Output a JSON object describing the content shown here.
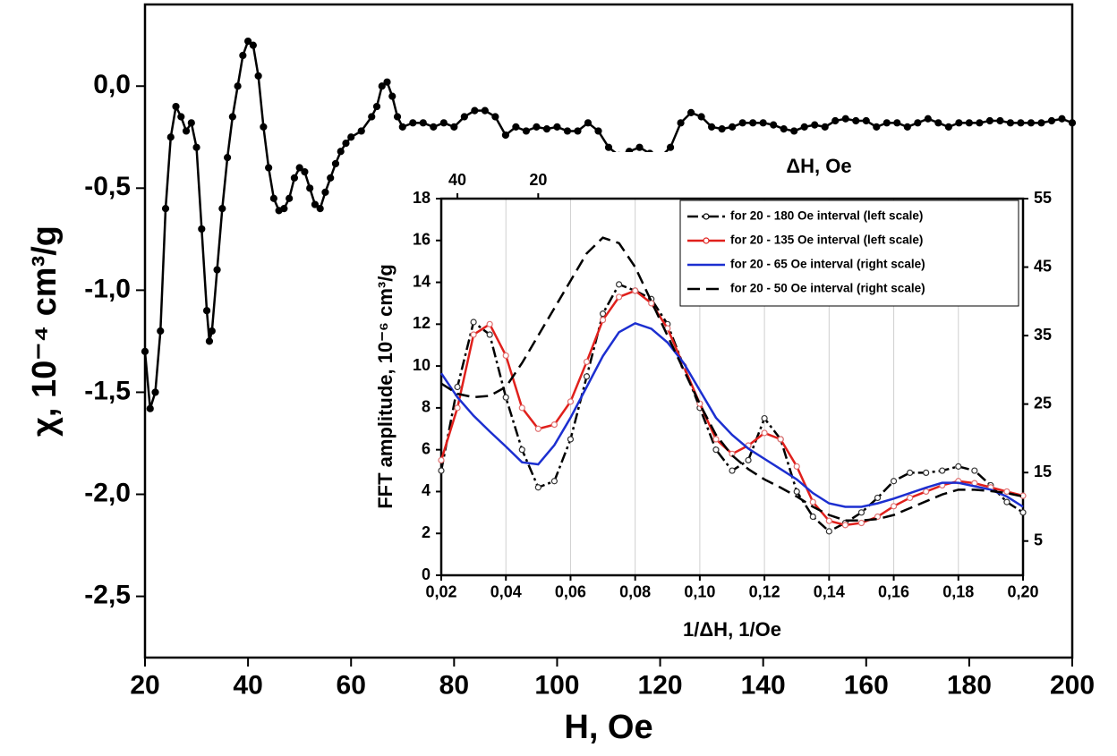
{
  "chart_data": [
    {
      "type": "line",
      "xlabel": "H, Oe",
      "ylabel": "χ, 10⁻⁴ cm³/g",
      "xlim": [
        20,
        200
      ],
      "ylim": [
        -2.8,
        0.4
      ],
      "xticks": [
        20,
        40,
        60,
        80,
        100,
        120,
        140,
        160,
        180,
        200
      ],
      "yticks": [
        {
          "value": 0,
          "label": "0,0"
        },
        {
          "value": -0.5,
          "label": "-0,5"
        },
        {
          "value": -1,
          "label": "-1,0"
        },
        {
          "value": -1.5,
          "label": "-1,5"
        },
        {
          "value": -2,
          "label": "-2,0"
        },
        {
          "value": -2.5,
          "label": "-2,5"
        }
      ],
      "color": "#000000",
      "marker": "filled-circle",
      "linestyle": "solid",
      "x": [
        20,
        21,
        22,
        23,
        24,
        25,
        26,
        27,
        28,
        29,
        30,
        31,
        32,
        32.5,
        33,
        34,
        35,
        36,
        37,
        38,
        39,
        40,
        41,
        42,
        43,
        44,
        45,
        46,
        47,
        48,
        49,
        50,
        51,
        52,
        53,
        54,
        55,
        56,
        57,
        58,
        59,
        60,
        62,
        64,
        65,
        66,
        67,
        68,
        69,
        70,
        72,
        74,
        76,
        78,
        80,
        82,
        84,
        86,
        88,
        90,
        92,
        94,
        96,
        98,
        100,
        102,
        104,
        106,
        108,
        110,
        112,
        114,
        116,
        118,
        120,
        122,
        124,
        126,
        128,
        130,
        132,
        134,
        136,
        138,
        140,
        142,
        144,
        146,
        148,
        150,
        152,
        154,
        156,
        158,
        160,
        162,
        164,
        166,
        168,
        170,
        172,
        174,
        176,
        178,
        180,
        182,
        184,
        186,
        188,
        190,
        192,
        194,
        196,
        198,
        200
      ],
      "values": [
        -1.3,
        -1.58,
        -1.5,
        -1.2,
        -0.6,
        -0.25,
        -0.1,
        -0.15,
        -0.22,
        -0.18,
        -0.3,
        -0.7,
        -1.1,
        -1.25,
        -1.2,
        -0.9,
        -0.6,
        -0.35,
        -0.15,
        0,
        0.15,
        0.22,
        0.2,
        0.05,
        -0.2,
        -0.4,
        -0.55,
        -0.61,
        -0.6,
        -0.55,
        -0.45,
        -0.4,
        -0.42,
        -0.5,
        -0.58,
        -0.6,
        -0.52,
        -0.45,
        -0.38,
        -0.32,
        -0.28,
        -0.25,
        -0.22,
        -0.15,
        -0.1,
        0,
        0.02,
        -0.05,
        -0.15,
        -0.2,
        -0.18,
        -0.18,
        -0.2,
        -0.18,
        -0.2,
        -0.15,
        -0.12,
        -0.12,
        -0.15,
        -0.24,
        -0.2,
        -0.22,
        -0.2,
        -0.21,
        -0.2,
        -0.22,
        -0.22,
        -0.18,
        -0.22,
        -0.3,
        -0.34,
        -0.32,
        -0.3,
        -0.33,
        -0.35,
        -0.3,
        -0.18,
        -0.13,
        -0.15,
        -0.2,
        -0.21,
        -0.2,
        -0.18,
        -0.18,
        -0.18,
        -0.19,
        -0.21,
        -0.22,
        -0.2,
        -0.19,
        -0.2,
        -0.17,
        -0.16,
        -0.17,
        -0.17,
        -0.2,
        -0.18,
        -0.18,
        -0.2,
        -0.18,
        -0.16,
        -0.18,
        -0.2,
        -0.18,
        -0.18,
        -0.18,
        -0.17,
        -0.17,
        -0.18,
        -0.18,
        -0.18,
        -0.18,
        -0.17,
        -0.16,
        -0.18
      ]
    },
    {
      "type": "line",
      "xlabel": "1/ΔH, 1/Oe",
      "ylabel": "FFT amplitude, 10⁻⁶ cm³/g",
      "x2label": "ΔH, Oe",
      "xlim": [
        0.02,
        0.2
      ],
      "ylim": [
        0,
        18
      ],
      "y2lim": [
        0,
        55
      ],
      "xticks": [
        {
          "value": 0.02,
          "label": "0,02"
        },
        {
          "value": 0.04,
          "label": "0,04"
        },
        {
          "value": 0.06,
          "label": "0,06"
        },
        {
          "value": 0.08,
          "label": "0,08"
        },
        {
          "value": 0.1,
          "label": "0,10"
        },
        {
          "value": 0.12,
          "label": "0,12"
        },
        {
          "value": 0.14,
          "label": "0,14"
        },
        {
          "value": 0.16,
          "label": "0,16"
        },
        {
          "value": 0.18,
          "label": "0,18"
        },
        {
          "value": 0.2,
          "label": "0,20"
        }
      ],
      "yticks": [
        0,
        2,
        4,
        6,
        8,
        10,
        12,
        14,
        16,
        18
      ],
      "y2ticks": [
        5,
        15,
        25,
        35,
        45,
        55
      ],
      "x2ticks": [
        40,
        20
      ],
      "grid": true,
      "legend": "upper right",
      "x": [
        0.02,
        0.025,
        0.03,
        0.035,
        0.04,
        0.045,
        0.05,
        0.055,
        0.06,
        0.065,
        0.07,
        0.075,
        0.08,
        0.085,
        0.09,
        0.095,
        0.1,
        0.105,
        0.11,
        0.115,
        0.12,
        0.125,
        0.13,
        0.135,
        0.14,
        0.145,
        0.15,
        0.155,
        0.16,
        0.165,
        0.17,
        0.175,
        0.18,
        0.185,
        0.19,
        0.195,
        0.2
      ],
      "series": [
        {
          "name": "for 20 - 180 Oe interval (left scale)",
          "color": "#000000",
          "linestyle": "dashdot",
          "marker": "open-circle",
          "values": [
            5,
            9,
            12.1,
            11.5,
            8.5,
            6,
            4.2,
            4.5,
            6.5,
            9.5,
            12.5,
            13.9,
            13.6,
            13.2,
            12,
            10,
            8,
            6,
            5,
            5.5,
            7.5,
            6.5,
            4,
            2.8,
            2.1,
            2.5,
            3,
            3.7,
            4.5,
            4.9,
            4.9,
            5,
            5.2,
            5,
            4.3,
            3.5,
            3
          ]
        },
        {
          "name": "for 20 - 135 Oe interval (left scale)",
          "color": "#e0201c",
          "linestyle": "solid",
          "marker": "open-circle",
          "values": [
            5.5,
            8,
            11.5,
            12,
            10.5,
            8,
            7,
            7.2,
            8.3,
            10.2,
            12.2,
            13.3,
            13.6,
            13,
            11.8,
            10,
            8.2,
            6.5,
            5.8,
            6.2,
            6.8,
            6.5,
            5.2,
            3.5,
            2.6,
            2.4,
            2.5,
            2.8,
            3.3,
            3.7,
            4,
            4.3,
            4.5,
            4.4,
            4.2,
            4,
            3.8
          ]
        },
        {
          "name": "for 20 - 65 Oe interval (right scale)",
          "color": "#1c2fd0",
          "linestyle": "solid",
          "axis": "y2",
          "values": [
            29.5,
            26,
            23.3,
            21,
            18.8,
            16.5,
            16.2,
            19,
            23,
            27.5,
            32,
            35.5,
            36.8,
            36,
            34,
            31,
            27,
            23,
            20.5,
            18.5,
            17,
            15.5,
            14,
            12,
            10.5,
            10,
            10,
            10.5,
            11.2,
            12,
            12.8,
            13.5,
            13.5,
            13,
            12.5,
            11.5,
            10
          ]
        },
        {
          "name": "for 20 - 50 Oe interval (right scale)",
          "color": "#000000",
          "linestyle": "dashed",
          "axis": "y2",
          "values": [
            28,
            26.5,
            26,
            26.2,
            27.5,
            31,
            35,
            39,
            43,
            47,
            49.3,
            48.5,
            45,
            40,
            35,
            30,
            25,
            20.5,
            17.5,
            15.5,
            14,
            12.8,
            11.5,
            10,
            8.8,
            8,
            8,
            8.2,
            8.8,
            9.8,
            10.8,
            11.8,
            12.5,
            12.5,
            12.3,
            12,
            11.5
          ]
        }
      ]
    }
  ]
}
